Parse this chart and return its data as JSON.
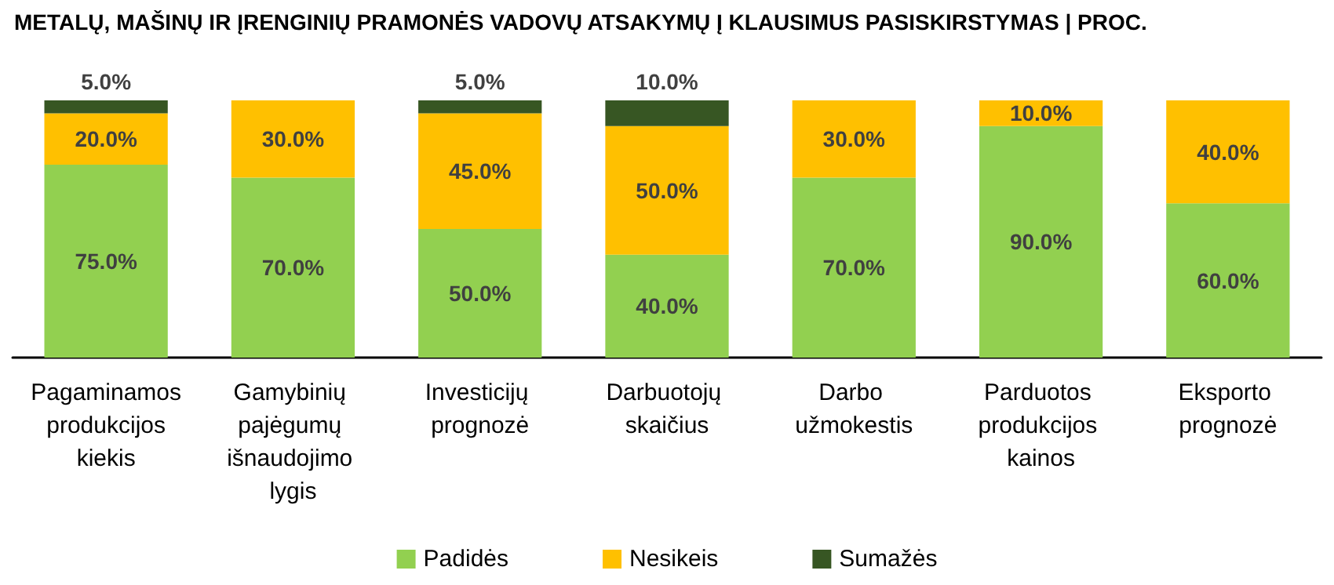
{
  "chart_data": {
    "type": "bar",
    "title": "METALŲ, MAŠINŲ IR ĮRENGINIŲ PRAMONĖS VADOVŲ ATSAKYMŲ Į KLAUSIMUS PASISKIRSTYMAS | PROC.",
    "categories": [
      "Pagaminamos produkcijos kiekis",
      "Gamybinių pajėgumų išnaudojimo lygis",
      "Investicijų prognozė",
      "Darbuotojų skaičius",
      "Darbo užmokestis",
      "Parduotos produkcijos kainos",
      "Eksporto prognozė"
    ],
    "stacked": true,
    "ylim": [
      0,
      100
    ],
    "tick_labels": "x",
    "grid": false,
    "legend": "bottom",
    "series": [
      {
        "name": "Padidės",
        "color": "#92d050",
        "values": [
          75,
          70,
          50,
          40,
          70,
          90,
          60
        ],
        "value_labels": [
          "75.0%",
          "70.0%",
          "50.0%",
          "40.0%",
          "70.0%",
          "90.0%",
          "60.0%"
        ]
      },
      {
        "name": "Nesikeis",
        "color": "#ffc000",
        "values": [
          20,
          30,
          45,
          50,
          30,
          10,
          40
        ],
        "value_labels": [
          "20.0%",
          "30.0%",
          "45.0%",
          "50.0%",
          "30.0%",
          "10.0%",
          "40.0%"
        ]
      },
      {
        "name": "Sumažės",
        "color": "#375623",
        "values": [
          5,
          null,
          5,
          10,
          null,
          null,
          null
        ],
        "value_labels": [
          "5.0%",
          null,
          "5.0%",
          "10.0%",
          null,
          null,
          null
        ]
      }
    ]
  }
}
